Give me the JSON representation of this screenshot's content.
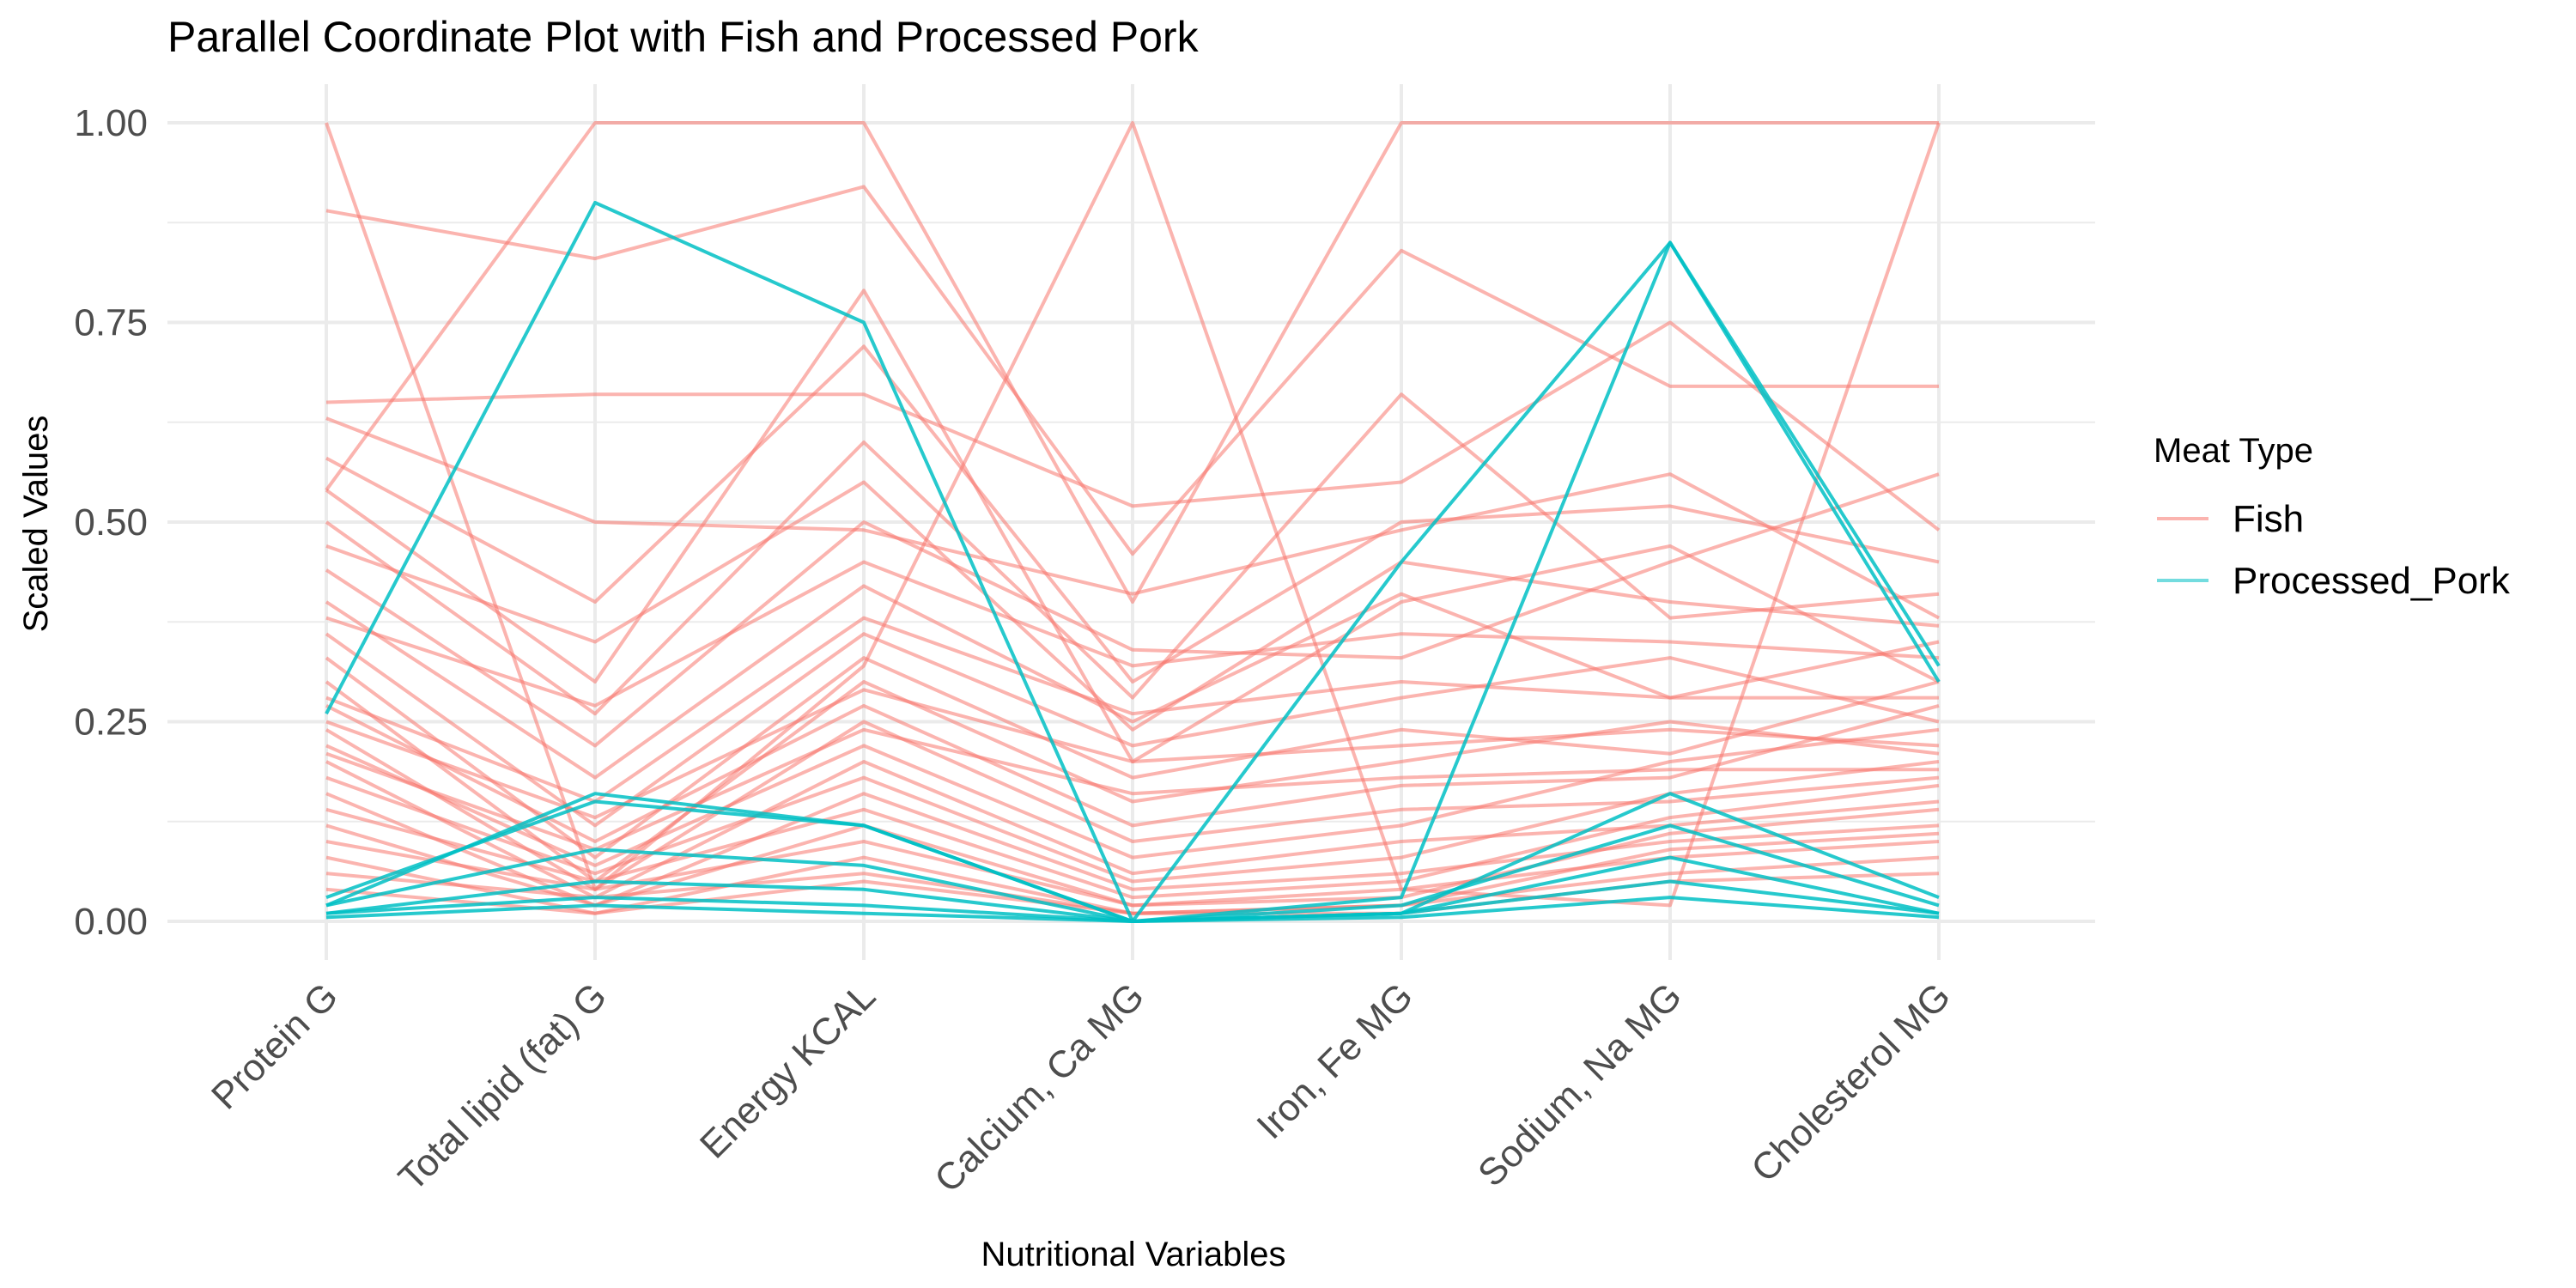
{
  "chart_data": {
    "type": "line",
    "subtype": "parallel-coordinates",
    "title": "Parallel Coordinate Plot with Fish and Processed Pork",
    "xlabel": "Nutritional Variables",
    "ylabel": "Scaled Values",
    "ylim": [
      0,
      1
    ],
    "yticks": [
      "0.00",
      "0.25",
      "0.50",
      "0.75",
      "1.00"
    ],
    "categories": [
      "Protein G",
      "Total lipid (fat) G",
      "Energy KCAL",
      "Calcium, Ca MG",
      "Iron, Fe MG",
      "Sodium, Na MG",
      "Cholesterol MG"
    ],
    "grid": true,
    "legend": {
      "title": "Meat Type",
      "position": "right"
    },
    "colors": {
      "Fish": "#F8766D",
      "Processed_Pork": "#00BFC4"
    },
    "series": [
      {
        "name": "Fish",
        "lines": [
          [
            1.0,
            0.04,
            0.32,
            1.0,
            0.04,
            0.02,
            1.0
          ],
          [
            0.54,
            1.0,
            1.0,
            0.4,
            1.0,
            1.0,
            1.0
          ],
          [
            0.89,
            0.83,
            0.92,
            0.46,
            0.84,
            0.67,
            0.67
          ],
          [
            0.65,
            0.66,
            0.66,
            0.52,
            0.55,
            0.75,
            0.49
          ],
          [
            0.63,
            0.5,
            0.49,
            0.41,
            0.49,
            0.56,
            0.38
          ],
          [
            0.54,
            0.3,
            0.79,
            0.2,
            0.4,
            0.47,
            0.3
          ],
          [
            0.5,
            0.26,
            0.6,
            0.28,
            0.66,
            0.38,
            0.41
          ],
          [
            0.44,
            0.22,
            0.5,
            0.34,
            0.33,
            0.45,
            0.56
          ],
          [
            0.4,
            0.18,
            0.42,
            0.25,
            0.41,
            0.28,
            0.35
          ],
          [
            0.36,
            0.12,
            0.36,
            0.22,
            0.28,
            0.33,
            0.25
          ],
          [
            0.33,
            0.08,
            0.33,
            0.18,
            0.24,
            0.21,
            0.3
          ],
          [
            0.3,
            0.05,
            0.3,
            0.15,
            0.2,
            0.25,
            0.21
          ],
          [
            0.27,
            0.1,
            0.27,
            0.12,
            0.17,
            0.18,
            0.27
          ],
          [
            0.24,
            0.04,
            0.25,
            0.1,
            0.14,
            0.15,
            0.18
          ],
          [
            0.22,
            0.07,
            0.22,
            0.08,
            0.12,
            0.2,
            0.24
          ],
          [
            0.2,
            0.03,
            0.2,
            0.06,
            0.1,
            0.12,
            0.15
          ],
          [
            0.18,
            0.06,
            0.18,
            0.05,
            0.08,
            0.16,
            0.2
          ],
          [
            0.16,
            0.02,
            0.16,
            0.04,
            0.06,
            0.1,
            0.12
          ],
          [
            0.14,
            0.05,
            0.14,
            0.03,
            0.05,
            0.13,
            0.17
          ],
          [
            0.12,
            0.02,
            0.12,
            0.02,
            0.04,
            0.08,
            0.1
          ],
          [
            0.1,
            0.04,
            0.1,
            0.02,
            0.03,
            0.11,
            0.14
          ],
          [
            0.08,
            0.01,
            0.08,
            0.01,
            0.02,
            0.06,
            0.08
          ],
          [
            0.06,
            0.03,
            0.06,
            0.01,
            0.02,
            0.09,
            0.11
          ],
          [
            0.04,
            0.01,
            0.05,
            0.01,
            0.01,
            0.05,
            0.06
          ],
          [
            0.58,
            0.4,
            0.72,
            0.3,
            0.5,
            0.52,
            0.45
          ],
          [
            0.47,
            0.35,
            0.55,
            0.24,
            0.45,
            0.4,
            0.37
          ],
          [
            0.38,
            0.27,
            0.45,
            0.32,
            0.36,
            0.35,
            0.33
          ],
          [
            0.28,
            0.15,
            0.38,
            0.26,
            0.3,
            0.28,
            0.28
          ],
          [
            0.25,
            0.13,
            0.29,
            0.2,
            0.22,
            0.24,
            0.22
          ],
          [
            0.21,
            0.09,
            0.24,
            0.16,
            0.18,
            0.19,
            0.19
          ]
        ]
      },
      {
        "name": "Processed_Pork",
        "lines": [
          [
            0.26,
            0.9,
            0.75,
            0.0,
            0.03,
            0.85,
            0.3
          ],
          [
            0.02,
            0.16,
            0.12,
            0.0,
            0.45,
            0.85,
            0.32
          ],
          [
            0.03,
            0.15,
            0.12,
            0.0,
            0.01,
            0.16,
            0.03
          ],
          [
            0.02,
            0.09,
            0.07,
            0.0,
            0.02,
            0.12,
            0.02
          ],
          [
            0.01,
            0.05,
            0.04,
            0.0,
            0.01,
            0.08,
            0.01
          ],
          [
            0.01,
            0.03,
            0.02,
            0.0,
            0.01,
            0.05,
            0.01
          ],
          [
            0.005,
            0.02,
            0.01,
            0.0,
            0.005,
            0.03,
            0.005
          ]
        ]
      }
    ]
  }
}
